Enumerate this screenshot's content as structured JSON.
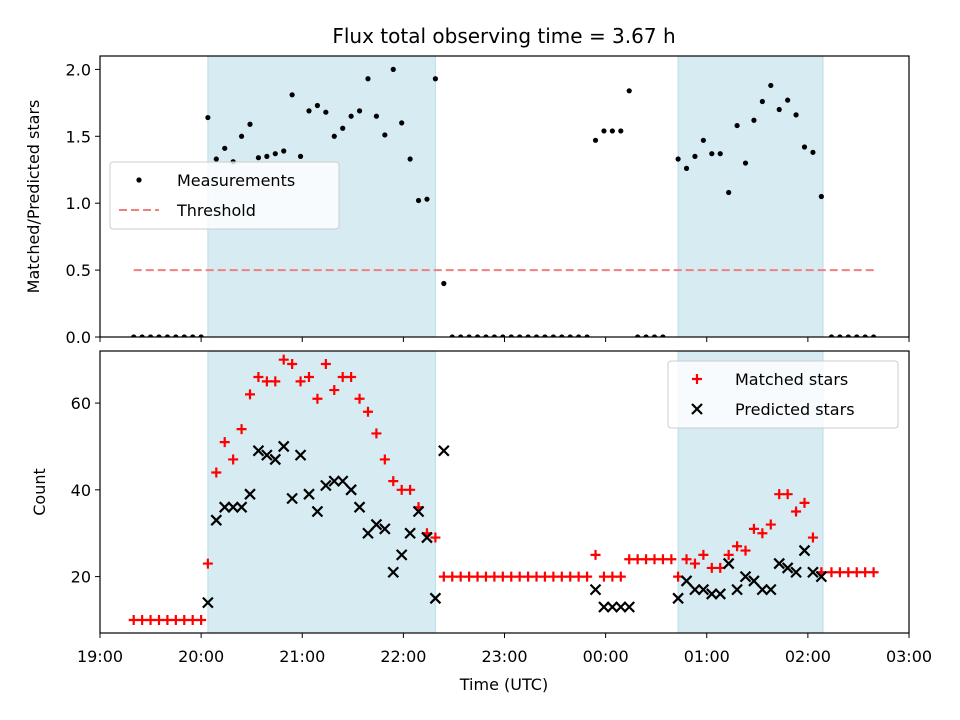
{
  "chart_data": {
    "type": "scatter",
    "title": "Flux total observing time = 3.67 h",
    "xlabel": "Time (UTC)",
    "x_ticks": [
      "19:00",
      "20:00",
      "21:00",
      "22:00",
      "23:00",
      "00:00",
      "01:00",
      "02:00",
      "03:00"
    ],
    "x_range": [
      "19:00",
      "03:00"
    ],
    "observing_windows": [
      [
        "20:04",
        "22:19"
      ],
      [
        "00:43",
        "02:09"
      ]
    ],
    "window_color": "#add8e6",
    "panels": [
      {
        "ylabel": "Matched/Predicted stars",
        "ylim": [
          0,
          2.1
        ],
        "y_ticks": [
          "0.0",
          "0.5",
          "1.0",
          "1.5",
          "2.0"
        ],
        "legend": {
          "placement": "center-left",
          "entries": [
            "Measurements",
            "Threshold"
          ]
        },
        "threshold": {
          "name": "Threshold",
          "value": 0.5,
          "x_start": "19:20",
          "x_end": "02:40",
          "color": "#f08080",
          "style": "dashed"
        },
        "series": [
          {
            "name": "Measurements",
            "marker": "dot",
            "color": "#000000",
            "points": [
              [
                "19:20",
                0
              ],
              [
                "19:25",
                0
              ],
              [
                "19:30",
                0
              ],
              [
                "19:35",
                0
              ],
              [
                "19:40",
                0
              ],
              [
                "19:45",
                0
              ],
              [
                "19:50",
                0
              ],
              [
                "19:55",
                0
              ],
              [
                "20:00",
                0
              ],
              [
                "20:04",
                1.64
              ],
              [
                "20:09",
                1.33
              ],
              [
                "20:14",
                1.41
              ],
              [
                "20:19",
                1.31
              ],
              [
                "20:24",
                1.5
              ],
              [
                "20:29",
                1.59
              ],
              [
                "20:34",
                1.34
              ],
              [
                "20:39",
                1.35
              ],
              [
                "20:44",
                1.37
              ],
              [
                "20:49",
                1.39
              ],
              [
                "20:54",
                1.81
              ],
              [
                "20:59",
                1.35
              ],
              [
                "21:04",
                1.69
              ],
              [
                "21:09",
                1.73
              ],
              [
                "21:14",
                1.68
              ],
              [
                "21:19",
                1.5
              ],
              [
                "21:24",
                1.56
              ],
              [
                "21:29",
                1.65
              ],
              [
                "21:34",
                1.69
              ],
              [
                "21:39",
                1.93
              ],
              [
                "21:44",
                1.65
              ],
              [
                "21:49",
                1.51
              ],
              [
                "21:54",
                2.0
              ],
              [
                "21:59",
                1.6
              ],
              [
                "22:04",
                1.33
              ],
              [
                "22:09",
                1.02
              ],
              [
                "22:14",
                1.03
              ],
              [
                "22:19",
                1.93
              ],
              [
                "22:24",
                0.4
              ],
              [
                "22:29",
                0
              ],
              [
                "22:34",
                0
              ],
              [
                "22:39",
                0
              ],
              [
                "22:44",
                0
              ],
              [
                "22:49",
                0
              ],
              [
                "22:54",
                0
              ],
              [
                "22:59",
                0
              ],
              [
                "23:04",
                0
              ],
              [
                "23:09",
                0
              ],
              [
                "23:14",
                0
              ],
              [
                "23:19",
                0
              ],
              [
                "23:24",
                0
              ],
              [
                "23:29",
                0
              ],
              [
                "23:34",
                0
              ],
              [
                "23:39",
                0
              ],
              [
                "23:44",
                0
              ],
              [
                "23:49",
                0
              ],
              [
                "23:54",
                1.47
              ],
              [
                "23:59",
                1.54
              ],
              [
                "00:04",
                1.54
              ],
              [
                "00:09",
                1.54
              ],
              [
                "00:14",
                1.84
              ],
              [
                "00:19",
                0
              ],
              [
                "00:24",
                0
              ],
              [
                "00:29",
                0
              ],
              [
                "00:34",
                0
              ],
              [
                "00:43",
                1.33
              ],
              [
                "00:48",
                1.26
              ],
              [
                "00:53",
                1.35
              ],
              [
                "00:58",
                1.47
              ],
              [
                "01:03",
                1.37
              ],
              [
                "01:08",
                1.37
              ],
              [
                "01:13",
                1.08
              ],
              [
                "01:18",
                1.58
              ],
              [
                "01:23",
                1.3
              ],
              [
                "01:28",
                1.62
              ],
              [
                "01:33",
                1.76
              ],
              [
                "01:38",
                1.88
              ],
              [
                "01:43",
                1.7
              ],
              [
                "01:48",
                1.77
              ],
              [
                "01:53",
                1.66
              ],
              [
                "01:58",
                1.42
              ],
              [
                "02:03",
                1.38
              ],
              [
                "02:08",
                1.05
              ],
              [
                "02:14",
                0
              ],
              [
                "02:19",
                0
              ],
              [
                "02:24",
                0
              ],
              [
                "02:29",
                0
              ],
              [
                "02:34",
                0
              ],
              [
                "02:39",
                0
              ]
            ]
          }
        ]
      },
      {
        "ylabel": "Count",
        "ylim": [
          7,
          72
        ],
        "y_ticks": [
          "20",
          "40",
          "60"
        ],
        "legend": {
          "placement": "top-right",
          "entries": [
            "Matched stars",
            "Predicted stars"
          ]
        },
        "series": [
          {
            "name": "Matched stars",
            "marker": "plus",
            "color": "#ff0000",
            "points": [
              [
                "19:20",
                10
              ],
              [
                "19:25",
                10
              ],
              [
                "19:30",
                10
              ],
              [
                "19:35",
                10
              ],
              [
                "19:40",
                10
              ],
              [
                "19:45",
                10
              ],
              [
                "19:50",
                10
              ],
              [
                "19:55",
                10
              ],
              [
                "20:00",
                10
              ],
              [
                "20:04",
                23
              ],
              [
                "20:09",
                44
              ],
              [
                "20:14",
                51
              ],
              [
                "20:19",
                47
              ],
              [
                "20:24",
                54
              ],
              [
                "20:29",
                62
              ],
              [
                "20:34",
                66
              ],
              [
                "20:39",
                65
              ],
              [
                "20:44",
                65
              ],
              [
                "20:49",
                70
              ],
              [
                "20:54",
                69
              ],
              [
                "20:59",
                65
              ],
              [
                "21:04",
                66
              ],
              [
                "21:09",
                61
              ],
              [
                "21:14",
                69
              ],
              [
                "21:19",
                63
              ],
              [
                "21:24",
                66
              ],
              [
                "21:29",
                66
              ],
              [
                "21:34",
                61
              ],
              [
                "21:39",
                58
              ],
              [
                "21:44",
                53
              ],
              [
                "21:49",
                47
              ],
              [
                "21:54",
                42
              ],
              [
                "21:59",
                40
              ],
              [
                "22:04",
                40
              ],
              [
                "22:09",
                36
              ],
              [
                "22:14",
                30
              ],
              [
                "22:19",
                29
              ],
              [
                "22:24",
                20
              ],
              [
                "22:29",
                20
              ],
              [
                "22:34",
                20
              ],
              [
                "22:39",
                20
              ],
              [
                "22:44",
                20
              ],
              [
                "22:49",
                20
              ],
              [
                "22:54",
                20
              ],
              [
                "22:59",
                20
              ],
              [
                "23:04",
                20
              ],
              [
                "23:09",
                20
              ],
              [
                "23:14",
                20
              ],
              [
                "23:19",
                20
              ],
              [
                "23:24",
                20
              ],
              [
                "23:29",
                20
              ],
              [
                "23:34",
                20
              ],
              [
                "23:39",
                20
              ],
              [
                "23:44",
                20
              ],
              [
                "23:49",
                20
              ],
              [
                "23:54",
                25
              ],
              [
                "23:59",
                20
              ],
              [
                "00:04",
                20
              ],
              [
                "00:09",
                20
              ],
              [
                "00:14",
                24
              ],
              [
                "00:19",
                24
              ],
              [
                "00:24",
                24
              ],
              [
                "00:29",
                24
              ],
              [
                "00:34",
                24
              ],
              [
                "00:39",
                24
              ],
              [
                "00:43",
                20
              ],
              [
                "00:48",
                24
              ],
              [
                "00:53",
                23
              ],
              [
                "00:58",
                25
              ],
              [
                "01:03",
                22
              ],
              [
                "01:08",
                22
              ],
              [
                "01:13",
                25
              ],
              [
                "01:18",
                27
              ],
              [
                "01:23",
                26
              ],
              [
                "01:28",
                31
              ],
              [
                "01:33",
                30
              ],
              [
                "01:38",
                32
              ],
              [
                "01:43",
                39
              ],
              [
                "01:48",
                39
              ],
              [
                "01:53",
                35
              ],
              [
                "01:58",
                37
              ],
              [
                "02:03",
                29
              ],
              [
                "02:08",
                21
              ],
              [
                "02:14",
                21
              ],
              [
                "02:19",
                21
              ],
              [
                "02:24",
                21
              ],
              [
                "02:29",
                21
              ],
              [
                "02:34",
                21
              ],
              [
                "02:39",
                21
              ]
            ]
          },
          {
            "name": "Predicted stars",
            "marker": "x",
            "color": "#000000",
            "points": [
              [
                "20:04",
                14
              ],
              [
                "20:09",
                33
              ],
              [
                "20:14",
                36
              ],
              [
                "20:19",
                36
              ],
              [
                "20:24",
                36
              ],
              [
                "20:29",
                39
              ],
              [
                "20:34",
                49
              ],
              [
                "20:39",
                48
              ],
              [
                "20:44",
                47
              ],
              [
                "20:49",
                50
              ],
              [
                "20:54",
                38
              ],
              [
                "20:59",
                48
              ],
              [
                "21:04",
                39
              ],
              [
                "21:09",
                35
              ],
              [
                "21:14",
                41
              ],
              [
                "21:19",
                42
              ],
              [
                "21:24",
                42
              ],
              [
                "21:29",
                40
              ],
              [
                "21:34",
                36
              ],
              [
                "21:39",
                30
              ],
              [
                "21:44",
                32
              ],
              [
                "21:49",
                31
              ],
              [
                "21:54",
                21
              ],
              [
                "21:59",
                25
              ],
              [
                "22:04",
                30
              ],
              [
                "22:09",
                35
              ],
              [
                "22:14",
                29
              ],
              [
                "22:19",
                15
              ],
              [
                "22:24",
                49
              ],
              [
                "23:54",
                17
              ],
              [
                "23:59",
                13
              ],
              [
                "00:04",
                13
              ],
              [
                "00:09",
                13
              ],
              [
                "00:14",
                13
              ],
              [
                "00:43",
                15
              ],
              [
                "00:48",
                19
              ],
              [
                "00:53",
                17
              ],
              [
                "00:58",
                17
              ],
              [
                "01:03",
                16
              ],
              [
                "01:08",
                16
              ],
              [
                "01:13",
                23
              ],
              [
                "01:18",
                17
              ],
              [
                "01:23",
                20
              ],
              [
                "01:28",
                19
              ],
              [
                "01:33",
                17
              ],
              [
                "01:38",
                17
              ],
              [
                "01:43",
                23
              ],
              [
                "01:48",
                22
              ],
              [
                "01:53",
                21
              ],
              [
                "01:58",
                26
              ],
              [
                "02:03",
                21
              ],
              [
                "02:08",
                20
              ]
            ]
          }
        ]
      }
    ]
  }
}
